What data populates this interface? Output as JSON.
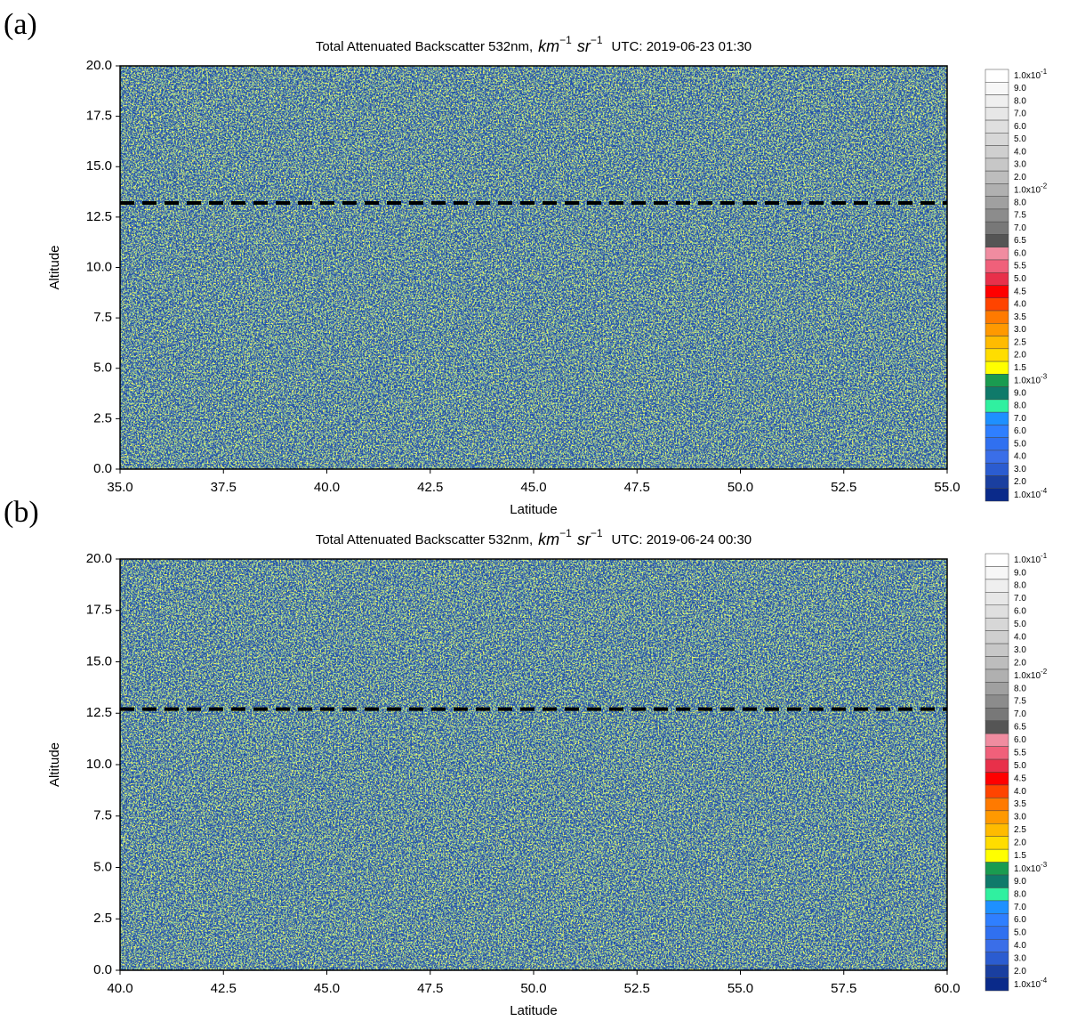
{
  "chart_data": [
    {
      "type": "curtain",
      "panel_label": "(a)",
      "title": {
        "text": "Total Attenuated Backscatter 532nm,",
        "units": [
          "km",
          "−1",
          "sr",
          "−1"
        ],
        "time": "UTC: 2019-06-23 01:30"
      },
      "xlabel": "Latitude",
      "ylabel": "Altitude",
      "xlim": [
        35,
        55
      ],
      "xticks": [
        {
          "value": 35,
          "label": "35.0"
        },
        37.5,
        {
          "value": 40,
          "label": "40.0"
        },
        42.5,
        {
          "value": 45,
          "label": "45.0"
        },
        47.5,
        {
          "value": 50,
          "label": "50.0"
        },
        52.5,
        {
          "value": 55,
          "label": "55.0"
        }
      ],
      "ylim": [
        0,
        20
      ],
      "yticks": [
        {
          "value": 0,
          "label": "0.0"
        },
        2.5,
        {
          "value": 5,
          "label": "5.0"
        },
        7.5,
        {
          "value": 10,
          "label": "10.0"
        },
        12.5,
        {
          "value": 15,
          "label": "15.0"
        },
        17.5,
        {
          "value": 20,
          "label": "20.0"
        }
      ],
      "hline": 13.2
    },
    {
      "type": "curtain",
      "panel_label": "(b)",
      "title": {
        "text": "Total Attenuated Backscatter 532nm,",
        "units": [
          "km",
          "−1",
          "sr",
          "−1"
        ],
        "time": "UTC: 2019-06-24 00:30"
      },
      "xlabel": "Latitude",
      "ylabel": "Altitude",
      "xlim": [
        40,
        60
      ],
      "xticks": [
        {
          "value": 40,
          "label": "40.0"
        },
        42.5,
        {
          "value": 45,
          "label": "45.0"
        },
        47.5,
        {
          "value": 50,
          "label": "50.0"
        },
        52.5,
        {
          "value": 55,
          "label": "55.0"
        },
        57.5,
        {
          "value": 60,
          "label": "60.0"
        }
      ],
      "ylim": [
        0,
        20
      ],
      "yticks": [
        {
          "value": 0,
          "label": "0.0"
        },
        2.5,
        {
          "value": 5,
          "label": "5.0"
        },
        7.5,
        {
          "value": 10,
          "label": "10.0"
        },
        12.5,
        {
          "value": 15,
          "label": "15.0"
        },
        17.5,
        {
          "value": 20,
          "label": "20.0"
        }
      ],
      "hline": 12.7
    }
  ],
  "colorbar": {
    "labels": [
      {
        "base": "1.0x10",
        "exp": "-1"
      },
      "9.0",
      "8.0",
      "7.0",
      "6.0",
      "5.0",
      "4.0",
      "3.0",
      "2.0",
      {
        "base": "1.0x10",
        "exp": "-2"
      },
      "8.0",
      "7.5",
      "7.0",
      "6.5",
      "6.0",
      "5.5",
      "5.0",
      "4.5",
      "4.0",
      "3.5",
      "3.0",
      "2.5",
      "2.0",
      "1.5",
      {
        "base": "1.0x10",
        "exp": "-3"
      },
      "9.0",
      "8.0",
      "7.0",
      "6.0",
      "5.0",
      "4.0",
      "3.0",
      "2.0",
      {
        "base": "1.0x10",
        "exp": "-4"
      }
    ],
    "colors": [
      "#ffffff",
      "#f7f7f7",
      "#efefef",
      "#e7e7e7",
      "#dfdfdf",
      "#d7d7d7",
      "#cfcfcf",
      "#c7c7c7",
      "#bdbdbd",
      "#b0b0b0",
      "#a0a0a0",
      "#8c8c8c",
      "#787878",
      "#555555",
      "#f08ca0",
      "#f0607a",
      "#e8304a",
      "#ff0000",
      "#ff4400",
      "#ff7a00",
      "#ff9900",
      "#ffbb00",
      "#ffdd00",
      "#ffff00",
      "#1a9b50",
      "#0f7a6a",
      "#30f0a0",
      "#1e90ff",
      "#2f7fff",
      "#3070f0",
      "#3a6ee8",
      "#2b5cd0",
      "#1a3fa0",
      "#0a2a8a"
    ]
  }
}
